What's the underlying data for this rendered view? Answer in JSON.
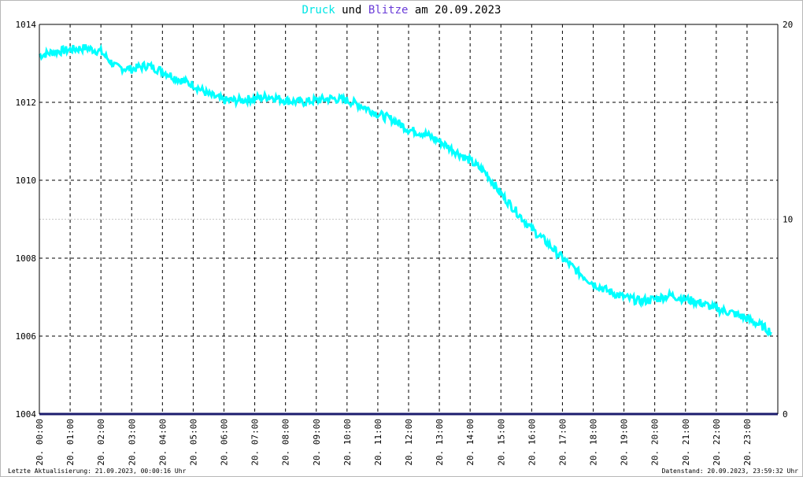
{
  "title": {
    "series1": "Druck",
    "word_and": "und",
    "series2": "Blitze",
    "rest": "am 20.09.2023"
  },
  "footer": {
    "left": "Letzte Aktualisierung: 21.09.2023, 00:00:16 Uhr",
    "right": "Datenstand: 20.09.2023, 23:59:32 Uhr"
  },
  "colors": {
    "pressure": "#00ffff",
    "lightning": "#1c1c6e",
    "grid": "#000000",
    "minor_grid": "#c8c8c8",
    "title_series1": "#00e5e5",
    "title_series2": "#6a3cd8"
  },
  "chart_data": {
    "type": "line",
    "x_unit": "hour",
    "xlim": [
      0,
      24
    ],
    "x_tick_labels": [
      "20. 00:00",
      "20. 01:00",
      "20. 02:00",
      "20. 03:00",
      "20. 04:00",
      "20. 05:00",
      "20. 06:00",
      "20. 07:00",
      "20. 08:00",
      "20. 09:00",
      "20. 10:00",
      "20. 11:00",
      "20. 12:00",
      "20. 13:00",
      "20. 14:00",
      "20. 15:00",
      "20. 16:00",
      "20. 17:00",
      "20. 18:00",
      "20. 19:00",
      "20. 20:00",
      "20. 21:00",
      "20. 22:00",
      "20. 23:00"
    ],
    "y_left": {
      "ylim": [
        1004,
        1014
      ],
      "ticks": [
        1004,
        1006,
        1008,
        1010,
        1012,
        1014
      ]
    },
    "y_right": {
      "ylim": [
        0,
        20
      ],
      "ticks": [
        0,
        10,
        20
      ]
    },
    "grid": true,
    "series": [
      {
        "name": "Druck",
        "axis": "left",
        "color": "#00ffff",
        "x": [
          0,
          0.5,
          1,
          1.5,
          2,
          2.5,
          3,
          3.5,
          4,
          4.5,
          5,
          5.5,
          6,
          6.5,
          7,
          7.5,
          8,
          8.5,
          9,
          9.5,
          10,
          10.5,
          11,
          11.5,
          12,
          12.5,
          13,
          13.5,
          14,
          14.5,
          15,
          15.5,
          16,
          16.5,
          17,
          17.5,
          18,
          18.5,
          19,
          19.5,
          20,
          20.5,
          21,
          21.5,
          22,
          22.5,
          23,
          23.5,
          23.8
        ],
        "y": [
          1013.2,
          1013.3,
          1013.35,
          1013.4,
          1013.3,
          1012.9,
          1012.85,
          1012.95,
          1012.8,
          1012.6,
          1012.45,
          1012.2,
          1012.05,
          1012.05,
          1012.1,
          1012.15,
          1012.05,
          1012.0,
          1012.05,
          1012.1,
          1012.05,
          1011.9,
          1011.7,
          1011.55,
          1011.3,
          1011.2,
          1011.0,
          1010.75,
          1010.5,
          1010.2,
          1009.65,
          1009.2,
          1008.75,
          1008.4,
          1008.0,
          1007.65,
          1007.35,
          1007.15,
          1007.0,
          1006.9,
          1006.95,
          1007.05,
          1006.95,
          1006.85,
          1006.7,
          1006.6,
          1006.45,
          1006.25,
          1006.1
        ]
      },
      {
        "name": "Blitze",
        "axis": "right",
        "color": "#1c1c6e",
        "x": [
          0,
          24
        ],
        "y": [
          0,
          0
        ]
      }
    ]
  }
}
